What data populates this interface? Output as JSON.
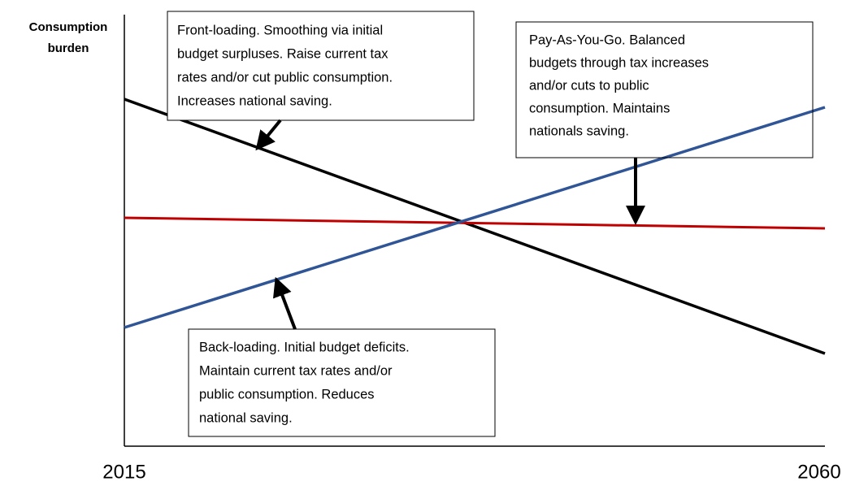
{
  "y_axis_label": [
    "Consumption",
    "burden"
  ],
  "x_labels": [
    "2015",
    "2060"
  ],
  "annotations": [
    {
      "lines": [
        "Front-loading. Smoothing via initial",
        "budget surpluses. Raise current tax",
        "rates and/or cut public consumption.",
        "Increases national saving."
      ]
    },
    {
      "lines": [
        "Pay-As-You-Go. Balanced",
        "budgets through tax increases",
        "and/or cuts to public",
        "consumption. Maintains",
        "nationals saving."
      ]
    },
    {
      "lines": [
        "Back-loading. Initial budget deficits.",
        "Maintain current tax rates and/or",
        "public consumption. Reduces",
        "national saving."
      ]
    }
  ]
}
